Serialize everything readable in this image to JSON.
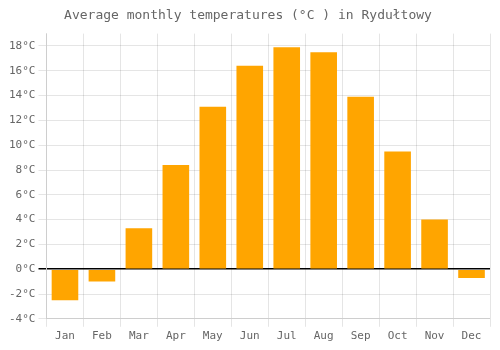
{
  "chart_data": {
    "type": "bar",
    "title": "Average monthly temperatures (°C ) in Rydułtowy",
    "categories": [
      "Jan",
      "Feb",
      "Mar",
      "Apr",
      "May",
      "Jun",
      "Jul",
      "Aug",
      "Sep",
      "Oct",
      "Nov",
      "Dec"
    ],
    "values": [
      -2.5,
      -1.0,
      3.3,
      8.4,
      13.1,
      16.4,
      17.9,
      17.5,
      13.9,
      9.5,
      4.0,
      -0.7
    ],
    "color": "#FFA500",
    "ylim": [
      -4,
      19
    ],
    "yticks": [
      {
        "value": -4,
        "label": "-4°C"
      },
      {
        "value": -2,
        "label": "-2°C"
      },
      {
        "value": 0,
        "label": "0°C"
      },
      {
        "value": 2,
        "label": "2°C"
      },
      {
        "value": 4,
        "label": "4°C"
      },
      {
        "value": 6,
        "label": "6°C"
      },
      {
        "value": 8,
        "label": "8°C"
      },
      {
        "value": 10,
        "label": "10°C"
      },
      {
        "value": 12,
        "label": "12°C"
      },
      {
        "value": 14,
        "label": "14°C"
      },
      {
        "value": 16,
        "label": "16°C"
      },
      {
        "value": 18,
        "label": "18°C"
      }
    ],
    "grid": true
  }
}
